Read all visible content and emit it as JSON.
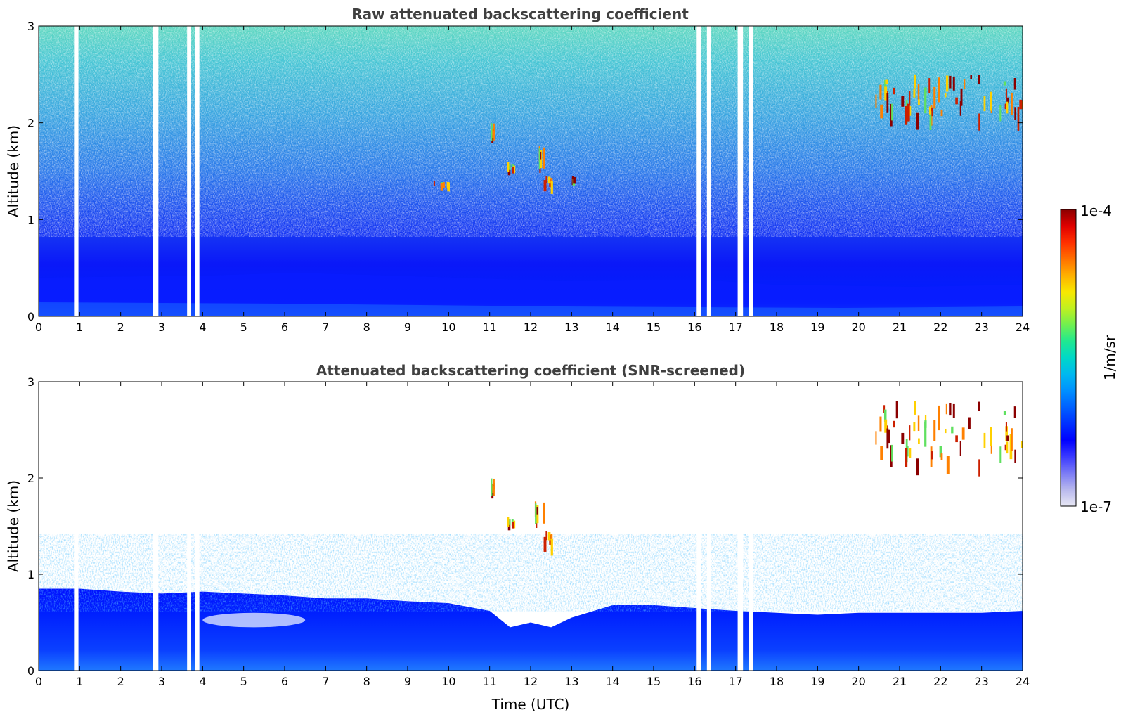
{
  "chart_data": [
    {
      "type": "heatmap",
      "title": "Raw attenuated backscattering coefficient",
      "xlabel": "",
      "ylabel": "Altitude (km)",
      "xlim": [
        0,
        24
      ],
      "ylim": [
        0,
        3
      ],
      "xticks": [
        "0",
        "1",
        "2",
        "3",
        "4",
        "5",
        "6",
        "7",
        "8",
        "9",
        "10",
        "11",
        "12",
        "13",
        "14",
        "15",
        "16",
        "17",
        "18",
        "19",
        "20",
        "21",
        "22",
        "23",
        "24"
      ],
      "yticks": [
        "0",
        "1",
        "2",
        "3"
      ],
      "color_scale": "log",
      "cbar_range": [
        1e-07,
        0.0001
      ],
      "data_gaps_utc": [
        [
          0.88,
          0.97
        ],
        [
          2.78,
          2.92
        ],
        [
          3.62,
          3.72
        ],
        [
          3.82,
          3.92
        ],
        [
          16.05,
          16.15
        ],
        [
          16.3,
          16.4
        ],
        [
          17.05,
          17.18
        ],
        [
          17.32,
          17.42
        ]
      ],
      "features": [
        {
          "label": "boundary layer",
          "x": [
            0,
            24
          ],
          "y": [
            0,
            0.5
          ]
        },
        {
          "label": "cloud",
          "x": [
            11.0,
            11.15
          ],
          "y": [
            1.85,
            2.0
          ]
        },
        {
          "label": "cloud",
          "x": [
            11.4,
            11.6
          ],
          "y": [
            1.45,
            1.6
          ]
        },
        {
          "label": "cloud",
          "x": [
            12.2,
            12.5
          ],
          "y": [
            1.35,
            1.45
          ]
        },
        {
          "label": "cloud",
          "x": [
            12.2,
            12.3
          ],
          "y": [
            1.6,
            1.8
          ]
        },
        {
          "label": "cloud",
          "x": [
            13.0,
            13.05
          ],
          "y": [
            1.38,
            1.45
          ]
        },
        {
          "label": "cloud",
          "x": [
            9.6,
            10.0
          ],
          "y": [
            1.35,
            1.4
          ]
        },
        {
          "label": "clouds",
          "x": [
            20.3,
            24.0
          ],
          "y": [
            1.8,
            2.5
          ]
        }
      ]
    },
    {
      "type": "heatmap",
      "title": "Attenuated backscattering coefficient (SNR-screened)",
      "xlabel": "Time (UTC)",
      "ylabel": "Altitude (km)",
      "xlim": [
        0,
        24
      ],
      "ylim": [
        0,
        3
      ],
      "xticks": [
        "0",
        "1",
        "2",
        "3",
        "4",
        "5",
        "6",
        "7",
        "8",
        "9",
        "10",
        "11",
        "12",
        "13",
        "14",
        "15",
        "16",
        "17",
        "18",
        "19",
        "20",
        "21",
        "22",
        "23",
        "24"
      ],
      "yticks": [
        "0",
        "1",
        "2",
        "3"
      ],
      "color_scale": "log",
      "cbar_range": [
        1e-07,
        0.0001
      ],
      "signal_top_km": [
        [
          0,
          0.85
        ],
        [
          1,
          0.85
        ],
        [
          2,
          0.82
        ],
        [
          3,
          0.8
        ],
        [
          4,
          0.82
        ],
        [
          5,
          0.8
        ],
        [
          6,
          0.78
        ],
        [
          7,
          0.75
        ],
        [
          8,
          0.75
        ],
        [
          9,
          0.72
        ],
        [
          10,
          0.7
        ],
        [
          11,
          0.62
        ],
        [
          11.5,
          0.45
        ],
        [
          12,
          0.5
        ],
        [
          12.5,
          0.45
        ],
        [
          13,
          0.55
        ],
        [
          14,
          0.68
        ],
        [
          15,
          0.68
        ],
        [
          16,
          0.65
        ],
        [
          17,
          0.62
        ],
        [
          18,
          0.6
        ],
        [
          19,
          0.58
        ],
        [
          20,
          0.6
        ],
        [
          21,
          0.6
        ],
        [
          22,
          0.6
        ],
        [
          23,
          0.6
        ],
        [
          24,
          0.62
        ]
      ],
      "features": [
        {
          "label": "aerosol layer",
          "x": [
            4.0,
            6.5
          ],
          "y": [
            0.45,
            0.6
          ]
        },
        {
          "label": "cloud",
          "x": [
            11.0,
            11.15
          ],
          "y": [
            1.85,
            2.0
          ]
        },
        {
          "label": "cloud",
          "x": [
            11.4,
            11.6
          ],
          "y": [
            1.45,
            1.6
          ]
        },
        {
          "label": "cloud",
          "x": [
            12.2,
            12.5
          ],
          "y": [
            1.3,
            1.45
          ]
        },
        {
          "label": "cloud",
          "x": [
            12.1,
            12.3
          ],
          "y": [
            1.6,
            1.8
          ]
        },
        {
          "label": "clouds",
          "x": [
            20.3,
            24.0
          ],
          "y": [
            1.75,
            2.8
          ]
        }
      ]
    }
  ],
  "colorbar": {
    "max_label": "1e-4",
    "min_label": "1e-7",
    "unit_label": "1/m/sr",
    "colors": [
      "#e8e8f4",
      "#b8b8ee",
      "#7b7bf5",
      "#3a3aff",
      "#0000ff",
      "#0030ff",
      "#0060ff",
      "#0090ff",
      "#00b8f0",
      "#00d8c8",
      "#20e890",
      "#70f050",
      "#c0f020",
      "#f8e800",
      "#ffb000",
      "#ff7000",
      "#ff3000",
      "#e00000",
      "#8b0000"
    ]
  }
}
